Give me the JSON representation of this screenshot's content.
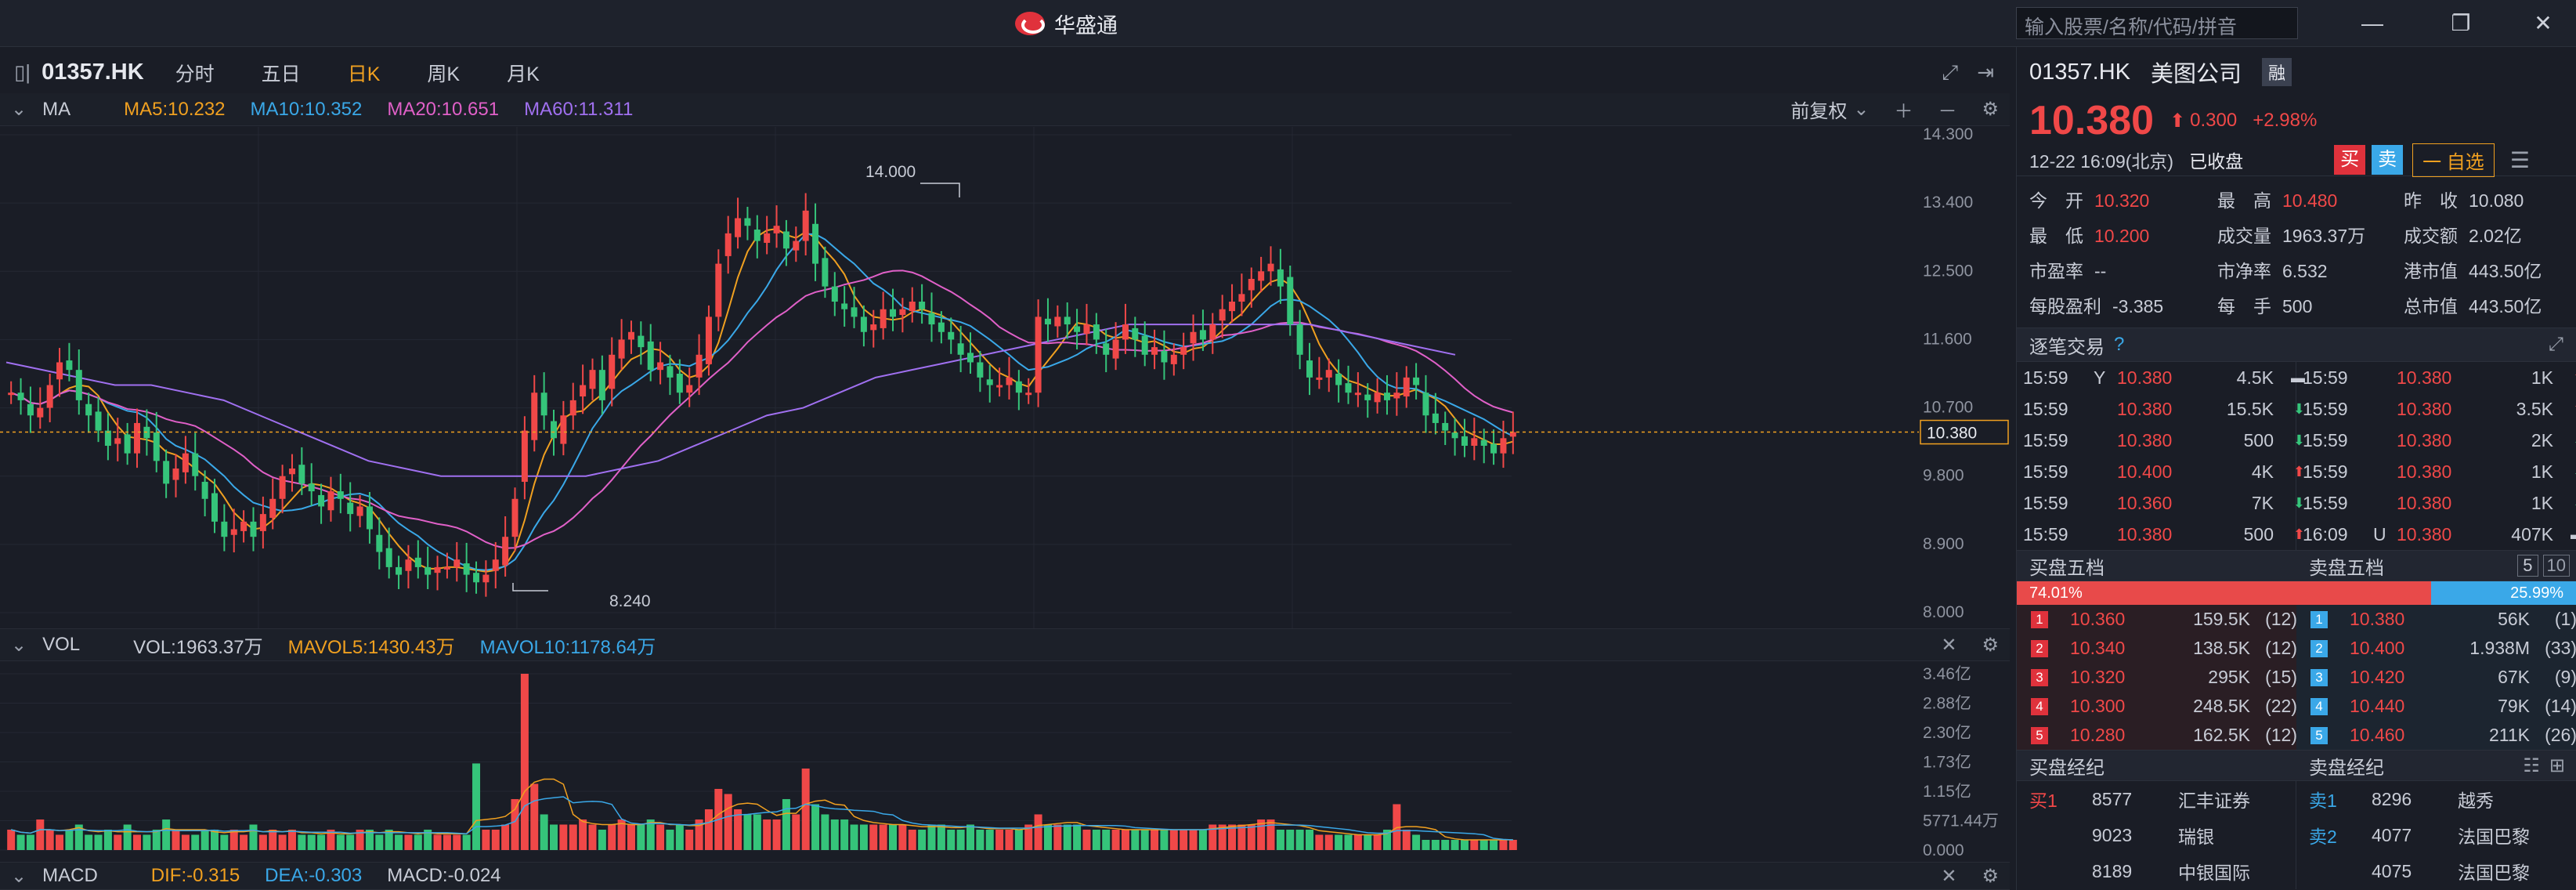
{
  "window": {
    "app_name": "华盛通",
    "search_placeholder": "输入股票/名称/代码/拼音",
    "minimize": "—",
    "restore": "❐",
    "close": "✕"
  },
  "toolbar": {
    "code": "01357.HK",
    "tabs": [
      "分时",
      "五日",
      "日K",
      "周K",
      "月K"
    ],
    "active_tab": "日K"
  },
  "ma_panel": {
    "label": "MA",
    "ma5": "MA5:10.232",
    "ma10": "MA10:10.352",
    "ma20": "MA20:10.651",
    "ma60": "MA60:11.311",
    "adjust": "前复权",
    "yticks": [
      "14.300",
      "13.400",
      "12.500",
      "11.600",
      "10.700",
      "9.800",
      "8.900",
      "8.000"
    ],
    "high_label": "14.000",
    "low_label": "8.240",
    "last_label": "10.380"
  },
  "vol_panel": {
    "label": "VOL",
    "vol": "VOL:1963.37万",
    "mavol5": "MAVOL5:1430.43万",
    "mavol10": "MAVOL10:1178.64万",
    "yticks": [
      "3.46亿",
      "2.88亿",
      "2.30亿",
      "1.73亿",
      "1.15亿",
      "5771.44万",
      "0.000"
    ]
  },
  "macd_panel": {
    "label": "MACD",
    "dif": "DIF:-0.315",
    "dea": "DEA:-0.303",
    "macd": "MACD:-0.024"
  },
  "colors": {
    "up": "#f04848",
    "down": "#35c47a",
    "ma5": "#f0a020",
    "ma10": "#3aa8e8",
    "ma20": "#e060c8",
    "ma60": "#a070f0",
    "bg": "#1a1d26"
  },
  "chart_data": {
    "type": "candlestick",
    "title": "",
    "ylim": [
      8.0,
      14.3
    ],
    "close_series": [
      10.9,
      10.8,
      10.6,
      10.7,
      11.0,
      11.3,
      11.2,
      10.8,
      10.6,
      10.4,
      10.2,
      10.3,
      10.1,
      10.5,
      10.3,
      10.0,
      9.7,
      9.9,
      10.1,
      9.8,
      9.5,
      9.2,
      9.0,
      9.1,
      9.2,
      9.0,
      9.3,
      9.5,
      9.8,
      9.9,
      9.7,
      9.6,
      9.4,
      9.6,
      9.5,
      9.3,
      9.4,
      9.1,
      8.8,
      8.6,
      8.5,
      8.7,
      8.6,
      8.5,
      8.6,
      8.6,
      8.7,
      8.5,
      8.4,
      8.5,
      8.7,
      9.0,
      9.5,
      10.4,
      10.9,
      10.6,
      10.3,
      10.6,
      10.8,
      11.0,
      11.2,
      10.8,
      11.4,
      11.6,
      11.7,
      11.5,
      11.2,
      11.3,
      11.1,
      10.9,
      11.0,
      11.4,
      11.9,
      12.6,
      13.0,
      13.2,
      13.1,
      12.9,
      13.0,
      13.1,
      12.8,
      12.9,
      13.3,
      12.6,
      12.3,
      12.1,
      12.0,
      11.9,
      11.7,
      11.8,
      12.0,
      11.9,
      12.0,
      12.1,
      12.0,
      11.8,
      11.7,
      11.6,
      11.4,
      11.3,
      11.1,
      11.0,
      11.0,
      11.1,
      10.9,
      10.9,
      11.9,
      11.8,
      11.9,
      11.8,
      11.7,
      11.8,
      11.6,
      11.4,
      11.6,
      11.8,
      11.6,
      11.4,
      11.5,
      11.3,
      11.4,
      11.5,
      11.7,
      11.6,
      11.8,
      12.0,
      12.1,
      12.2,
      12.4,
      12.5,
      12.6,
      12.3,
      11.8,
      11.4,
      11.1,
      11.1,
      11.2,
      11.0,
      10.9,
      10.9,
      10.8,
      10.9,
      10.8,
      10.9,
      11.1,
      11.0,
      10.6,
      10.5,
      10.4,
      10.3,
      10.2,
      10.3,
      10.2,
      10.1,
      10.3,
      10.38
    ],
    "ma60_series": [
      11.3,
      11.2,
      11.1,
      11.0,
      11.0,
      10.9,
      10.8,
      10.6,
      10.4,
      10.2,
      10.0,
      9.9,
      9.8,
      9.8,
      9.8,
      9.8,
      9.8,
      9.9,
      10.0,
      10.2,
      10.4,
      10.6,
      10.7,
      10.9,
      11.1,
      11.2,
      11.3,
      11.4,
      11.5,
      11.6,
      11.7,
      11.8,
      11.8,
      11.8,
      11.8,
      11.8,
      11.8,
      11.7,
      11.6,
      11.5,
      11.4
    ],
    "volume_series": [
      0.4,
      0.3,
      0.3,
      0.6,
      0.4,
      0.3,
      0.4,
      0.5,
      0.3,
      0.3,
      0.4,
      0.3,
      0.5,
      0.3,
      0.3,
      0.4,
      0.6,
      0.4,
      0.3,
      0.3,
      0.4,
      0.4,
      0.3,
      0.4,
      0.3,
      0.5,
      0.3,
      0.4,
      0.3,
      0.4,
      0.3,
      0.3,
      0.3,
      0.4,
      0.3,
      0.3,
      0.4,
      0.4,
      0.3,
      0.4,
      0.3,
      0.3,
      0.3,
      0.4,
      0.3,
      0.3,
      0.3,
      0.3,
      1.7,
      0.4,
      0.4,
      0.5,
      1.0,
      3.46,
      1.3,
      0.7,
      0.5,
      0.5,
      0.5,
      0.6,
      0.5,
      0.4,
      0.5,
      0.6,
      0.5,
      0.5,
      0.6,
      0.5,
      0.4,
      0.5,
      0.4,
      0.6,
      0.8,
      1.2,
      1.1,
      0.8,
      0.7,
      0.7,
      0.6,
      0.6,
      1.0,
      0.7,
      1.6,
      0.9,
      0.7,
      0.6,
      0.6,
      0.5,
      0.5,
      0.5,
      0.5,
      0.5,
      0.5,
      0.4,
      0.4,
      0.5,
      0.5,
      0.4,
      0.4,
      0.5,
      0.4,
      0.4,
      0.4,
      0.4,
      0.4,
      0.5,
      0.7,
      0.5,
      0.5,
      0.5,
      0.5,
      0.4,
      0.4,
      0.4,
      0.4,
      0.4,
      0.4,
      0.4,
      0.4,
      0.4,
      0.4,
      0.4,
      0.4,
      0.4,
      0.5,
      0.5,
      0.5,
      0.5,
      0.5,
      0.6,
      0.6,
      0.4,
      0.4,
      0.4,
      0.4,
      0.3,
      0.3,
      0.3,
      0.3,
      0.3,
      0.3,
      0.3,
      0.4,
      0.9,
      0.4,
      0.3,
      0.2,
      0.2,
      0.2,
      0.2,
      0.2,
      0.2,
      0.2,
      0.2,
      0.2,
      0.2
    ]
  },
  "quote": {
    "code": "01357.HK",
    "name": "美图公司",
    "badge": "融",
    "price": "10.380",
    "arrow": "⬆",
    "change": "0.300",
    "pct": "+2.98%",
    "time": "12-22  16:09(北京)",
    "status": "已收盘",
    "buy": "买",
    "sell": "卖",
    "watch": "一 自选"
  },
  "stats": [
    {
      "k": "今　开",
      "v": "10.320",
      "c": "red"
    },
    {
      "k": "最　高",
      "v": "10.480",
      "c": "red"
    },
    {
      "k": "昨　收",
      "v": "10.080",
      "c": "gray"
    },
    {
      "k": "最　低",
      "v": "10.200",
      "c": "red"
    },
    {
      "k": "成交量",
      "v": "1963.37万",
      "c": "gray"
    },
    {
      "k": "成交额",
      "v": "2.02亿",
      "c": "gray"
    },
    {
      "k": "市盈率",
      "v": "--",
      "c": "gray"
    },
    {
      "k": "市净率",
      "v": "6.532",
      "c": "gray"
    },
    {
      "k": "港市值",
      "v": "443.50亿",
      "c": "gray"
    },
    {
      "k": "每股盈利",
      "v": "-3.385",
      "c": "gray"
    },
    {
      "k": "每　手",
      "v": "500",
      "c": "gray"
    },
    {
      "k": "总市值",
      "v": "443.50亿",
      "c": "gray"
    }
  ],
  "tick_title": "逐笔交易",
  "ticks_left": [
    {
      "t": "15:59",
      "f": "Y",
      "p": "10.380",
      "q": "4.5K",
      "d": "flat"
    },
    {
      "t": "15:59",
      "f": "",
      "p": "10.380",
      "q": "15.5K",
      "d": "down"
    },
    {
      "t": "15:59",
      "f": "",
      "p": "10.380",
      "q": "500",
      "d": "down"
    },
    {
      "t": "15:59",
      "f": "",
      "p": "10.400",
      "q": "4K",
      "d": "up"
    },
    {
      "t": "15:59",
      "f": "",
      "p": "10.360",
      "q": "7K",
      "d": "down"
    },
    {
      "t": "15:59",
      "f": "",
      "p": "10.380",
      "q": "500",
      "d": "up"
    }
  ],
  "ticks_right": [
    {
      "t": "15:59",
      "f": "",
      "p": "10.380",
      "q": "1K",
      "d": "up"
    },
    {
      "t": "15:59",
      "f": "",
      "p": "10.380",
      "q": "3.5K",
      "d": "up"
    },
    {
      "t": "15:59",
      "f": "",
      "p": "10.380",
      "q": "2K",
      "d": "down"
    },
    {
      "t": "15:59",
      "f": "",
      "p": "10.380",
      "q": "1K",
      "d": "down"
    },
    {
      "t": "15:59",
      "f": "",
      "p": "10.380",
      "q": "1K",
      "d": "down"
    },
    {
      "t": "16:09",
      "f": "U",
      "p": "10.380",
      "q": "407K",
      "d": "flat"
    }
  ],
  "orderbook": {
    "bid_title": "买盘五档",
    "ask_title": "卖盘五档",
    "bid_pct": "74.01%",
    "ask_pct": "25.99%",
    "bid_ratio": 0.7401,
    "btn5": "5",
    "btn10": "10",
    "bids": [
      {
        "n": "1",
        "p": "10.360",
        "q": "159.5K",
        "c": "(12)"
      },
      {
        "n": "2",
        "p": "10.340",
        "q": "138.5K",
        "c": "(12)"
      },
      {
        "n": "3",
        "p": "10.320",
        "q": "295K",
        "c": "(15)"
      },
      {
        "n": "4",
        "p": "10.300",
        "q": "248.5K",
        "c": "(22)"
      },
      {
        "n": "5",
        "p": "10.280",
        "q": "162.5K",
        "c": "(12)"
      }
    ],
    "asks": [
      {
        "n": "1",
        "p": "10.380",
        "q": "56K",
        "c": "(1)"
      },
      {
        "n": "2",
        "p": "10.400",
        "q": "1.938M",
        "c": "(33)"
      },
      {
        "n": "3",
        "p": "10.420",
        "q": "67K",
        "c": "(9)"
      },
      {
        "n": "4",
        "p": "10.440",
        "q": "79K",
        "c": "(14)"
      },
      {
        "n": "5",
        "p": "10.460",
        "q": "211K",
        "c": "(26)"
      }
    ]
  },
  "brokers": {
    "bid_title": "买盘经纪",
    "ask_title": "卖盘经纪",
    "bids": [
      {
        "lvl": "买1",
        "id": "8577",
        "name": "汇丰证券"
      },
      {
        "lvl": "",
        "id": "9023",
        "name": "瑞银"
      },
      {
        "lvl": "",
        "id": "8189",
        "name": "中银国际"
      }
    ],
    "asks": [
      {
        "lvl": "卖1",
        "id": "8296",
        "name": "越秀"
      },
      {
        "lvl": "卖2",
        "id": "4077",
        "name": "法国巴黎"
      },
      {
        "lvl": "",
        "id": "4075",
        "name": "法国巴黎"
      }
    ]
  }
}
